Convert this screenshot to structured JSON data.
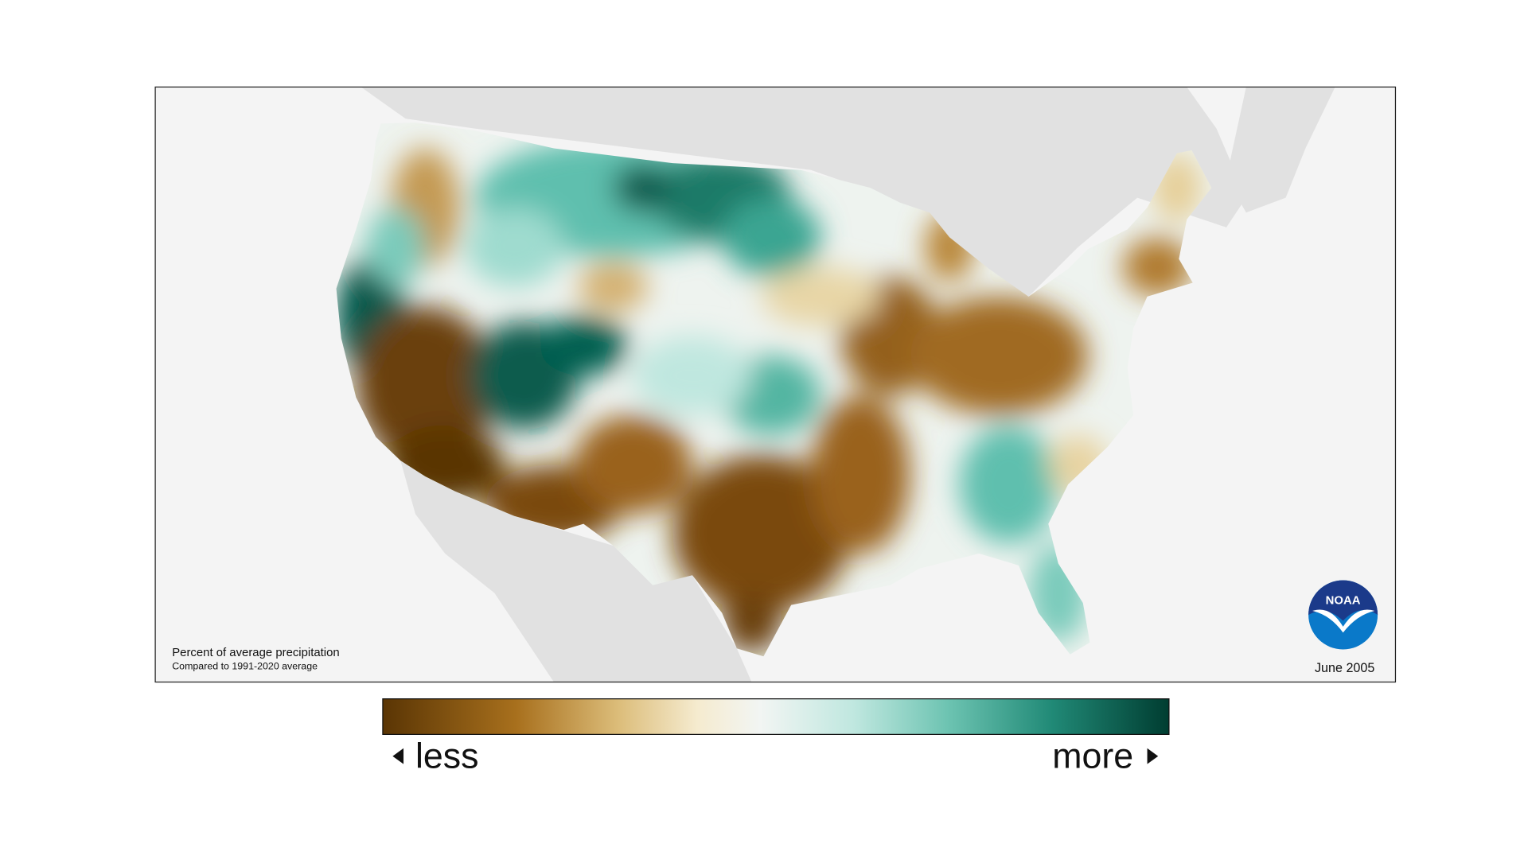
{
  "map": {
    "title": "Percent of average precipitation",
    "subtitle": "Compared to 1991-2020 average",
    "date": "June 2005"
  },
  "logo": {
    "text": "NOAA"
  },
  "legend": {
    "low_label": "less",
    "high_label": "more"
  }
}
